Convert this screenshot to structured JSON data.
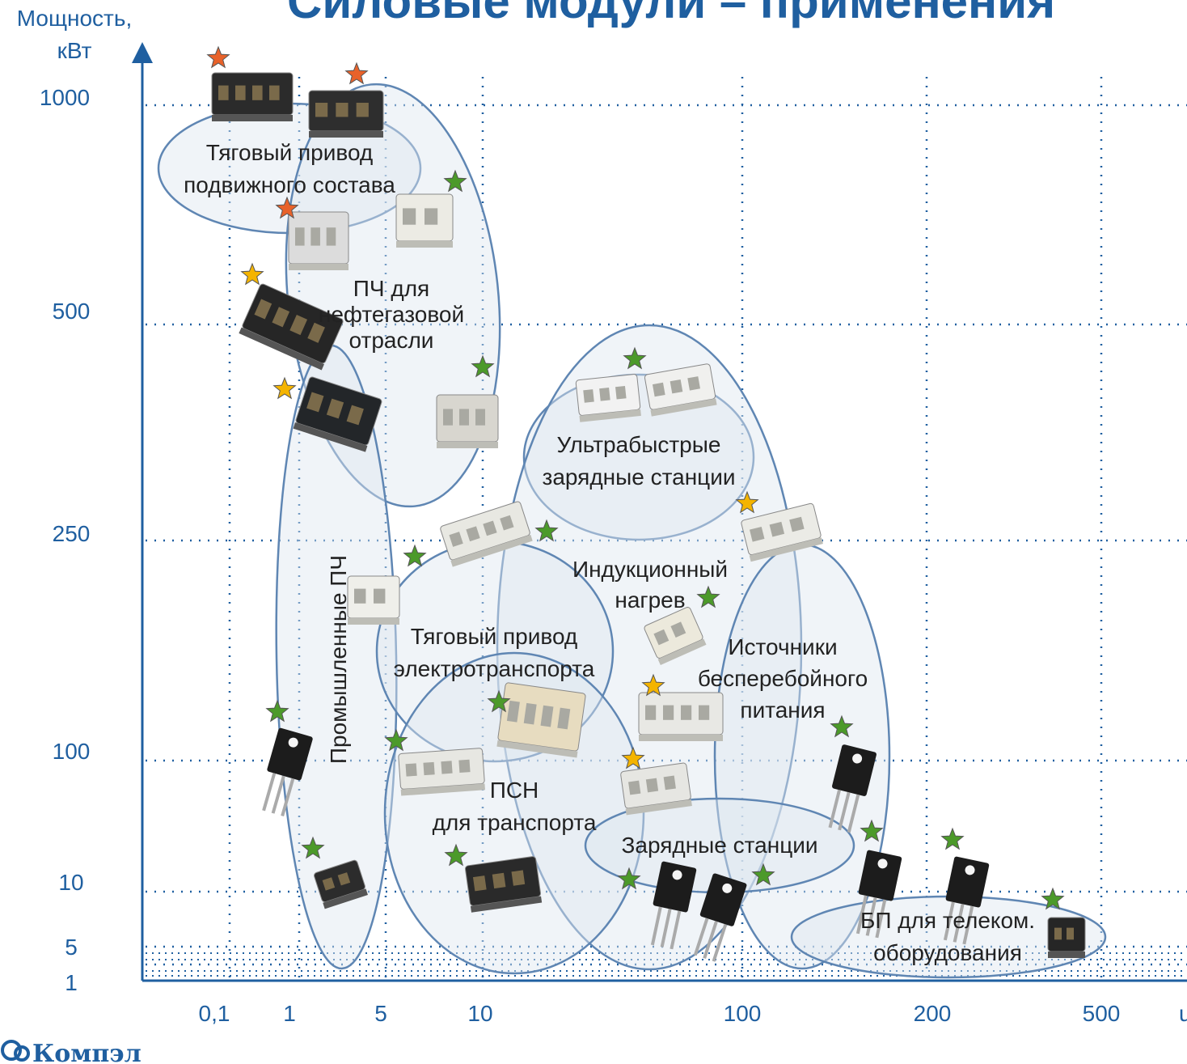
{
  "chart_data": {
    "type": "scatter",
    "title": "Силовые модули – применения",
    "ylabel_lines": [
      "Мощность,",
      "кВт"
    ],
    "x_ticks": [
      "0,1",
      "1",
      "5",
      "10",
      "100",
      "200",
      "500"
    ],
    "x_unit_fragment": "u",
    "y_ticks": [
      "1",
      "5",
      "10",
      "100",
      "250",
      "500",
      "1000"
    ],
    "grid": true,
    "applications": [
      {
        "lines": [
          "Тяговый привод",
          "подвижного состава"
        ],
        "x_range": [
          "0,1",
          "5"
        ],
        "y_range": [
          "1000",
          "1000"
        ]
      },
      {
        "lines": [
          "ПЧ для",
          "нефтегазовой",
          "отрасли"
        ],
        "x_range": [
          "1",
          "10"
        ],
        "y_range": [
          "250",
          "1000"
        ]
      },
      {
        "lines": [
          "Промышленные ПЧ"
        ],
        "x_range": [
          "0,1",
          "5"
        ],
        "y_range": [
          "1",
          "500"
        ]
      },
      {
        "lines": [
          "Ультрабыстрые",
          "зарядные станции"
        ],
        "x_range": [
          "10",
          "100"
        ],
        "y_range": [
          "250",
          "500"
        ]
      },
      {
        "lines": [
          "Индукционный",
          "нагрев"
        ],
        "x_range": [
          "10",
          "100"
        ],
        "y_range": [
          "1",
          "500"
        ]
      },
      {
        "lines": [
          "Тяговый привод",
          "электротранспорта"
        ],
        "x_range": [
          "5",
          "10"
        ],
        "y_range": [
          "100",
          "250"
        ]
      },
      {
        "lines": [
          "ПСН",
          "для транспорта"
        ],
        "x_range": [
          "5",
          "100"
        ],
        "y_range": [
          "1",
          "250"
        ]
      },
      {
        "lines": [
          "Источники",
          "бесперебойного",
          "питания"
        ],
        "x_range": [
          "100",
          "200"
        ],
        "y_range": [
          "1",
          "250"
        ]
      },
      {
        "lines": [
          "Зарядные станции"
        ],
        "x_range": [
          "100",
          "100"
        ],
        "y_range": [
          "10",
          "10"
        ]
      },
      {
        "lines": [
          "БП для телеком.",
          "оборудования"
        ],
        "x_range": [
          "200",
          "500"
        ],
        "y_range": [
          "1",
          "5"
        ]
      }
    ],
    "markers": {
      "orange": "#e8622a",
      "yellow": "#f4b400",
      "green": "#4c9a2a"
    }
  },
  "branding": {
    "logo_text": "Компэл"
  },
  "colors": {
    "axis": "#1f5fa0",
    "ellipse_fill": "#dde6f0",
    "ellipse_stroke": "#5f86b3",
    "grid": "#1f5fa0"
  }
}
